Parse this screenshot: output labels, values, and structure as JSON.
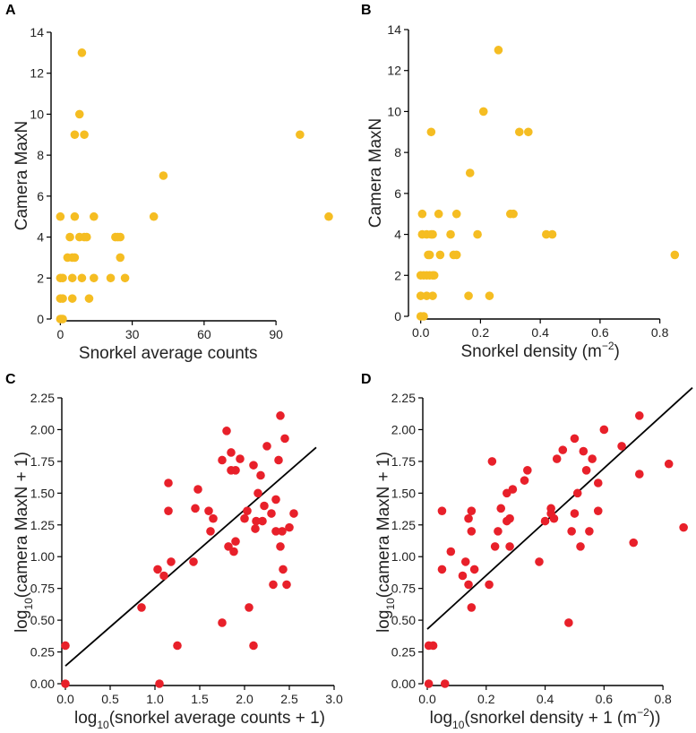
{
  "colors": {
    "orange": "#F5BD22",
    "red": "#E8202A",
    "axis": "#000000",
    "text": "#222222"
  },
  "chart_data": [
    {
      "panel": "A",
      "type": "scatter",
      "xlabel": "Snorkel average counts",
      "ylabel": "Camera MaxN",
      "xlim": [
        -2,
        115
      ],
      "ylim": [
        0,
        14
      ],
      "xticks": [
        0,
        30,
        60,
        90
      ],
      "xtick_labels": [
        "0",
        "30",
        "60",
        "90"
      ],
      "yticks": [
        0,
        2,
        4,
        6,
        8,
        10,
        12,
        14
      ],
      "ytick_labels": [
        "0",
        "2",
        "4",
        "6",
        "8",
        "10",
        "12",
        "14"
      ],
      "points": [
        [
          0,
          0
        ],
        [
          0.5,
          0
        ],
        [
          1,
          0
        ],
        [
          0,
          1
        ],
        [
          1,
          1
        ],
        [
          0,
          2
        ],
        [
          1,
          2
        ],
        [
          0,
          5
        ],
        [
          3,
          3
        ],
        [
          4,
          4
        ],
        [
          5,
          3
        ],
        [
          6,
          3
        ],
        [
          5,
          2
        ],
        [
          6,
          5
        ],
        [
          5,
          1
        ],
        [
          6,
          9
        ],
        [
          8,
          10
        ],
        [
          8,
          4
        ],
        [
          9,
          13
        ],
        [
          9,
          2
        ],
        [
          10,
          4
        ],
        [
          10,
          9
        ],
        [
          11,
          4
        ],
        [
          12,
          1
        ],
        [
          14,
          5
        ],
        [
          14,
          2
        ],
        [
          21,
          2
        ],
        [
          23,
          4
        ],
        [
          24,
          4
        ],
        [
          25,
          4
        ],
        [
          25,
          3
        ],
        [
          27,
          2
        ],
        [
          39,
          5
        ],
        [
          43,
          7
        ],
        [
          100,
          9
        ],
        [
          112,
          5
        ]
      ],
      "color": "#F5BD22"
    },
    {
      "panel": "B",
      "type": "scatter",
      "xlabel": "Snorkel density",
      "xlabel_unit": {
        "open": "(m",
        "sup": "−2",
        "close": ")"
      },
      "ylabel": "Camera MaxN",
      "xlim": [
        -0.02,
        0.9
      ],
      "ylim": [
        0,
        14
      ],
      "xticks": [
        0,
        0.2,
        0.4,
        0.6,
        0.8
      ],
      "xtick_labels": [
        "0.0",
        "0.2",
        "0.4",
        "0.6",
        "0.8"
      ],
      "yticks": [
        0,
        2,
        4,
        6,
        8,
        10,
        12,
        14
      ],
      "ytick_labels": [
        "0",
        "2",
        "4",
        "6",
        "8",
        "10",
        "12",
        "14"
      ],
      "points": [
        [
          0,
          0
        ],
        [
          0.01,
          0
        ],
        [
          0,
          1
        ],
        [
          0.02,
          1
        ],
        [
          0.04,
          1
        ],
        [
          0,
          2
        ],
        [
          0.01,
          2
        ],
        [
          0.02,
          2
        ],
        [
          0.03,
          2
        ],
        [
          0.04,
          2
        ],
        [
          0.045,
          2
        ],
        [
          0.005,
          4
        ],
        [
          0.02,
          4
        ],
        [
          0.035,
          4
        ],
        [
          0.04,
          4
        ],
        [
          0.005,
          5
        ],
        [
          0.025,
          3
        ],
        [
          0.03,
          3
        ],
        [
          0.035,
          9
        ],
        [
          0.06,
          5
        ],
        [
          0.065,
          3
        ],
        [
          0.1,
          4
        ],
        [
          0.11,
          3
        ],
        [
          0.12,
          3
        ],
        [
          0.12,
          5
        ],
        [
          0.16,
          1
        ],
        [
          0.165,
          7
        ],
        [
          0.19,
          4
        ],
        [
          0.21,
          10
        ],
        [
          0.23,
          1
        ],
        [
          0.26,
          13
        ],
        [
          0.3,
          5
        ],
        [
          0.31,
          5
        ],
        [
          0.33,
          9
        ],
        [
          0.36,
          9
        ],
        [
          0.42,
          4
        ],
        [
          0.44,
          4
        ],
        [
          0.85,
          3
        ]
      ],
      "color": "#F5BD22"
    },
    {
      "panel": "C",
      "type": "scatter",
      "xlabel": "log",
      "xlabel_sub": "10",
      "xlabel_rest": "(snorkel average counts + 1)",
      "ylabel": "log",
      "ylabel_sub": "10",
      "ylabel_rest": "(camera MaxN + 1)",
      "xlim": [
        0,
        3.0
      ],
      "ylim": [
        0,
        2.25
      ],
      "xticks": [
        0,
        0.5,
        1.0,
        1.5,
        2.0,
        2.5,
        3.0
      ],
      "xtick_labels": [
        "0.0",
        "0.5",
        "1.0",
        "1.5",
        "2.0",
        "2.5",
        "3.0"
      ],
      "yticks": [
        0,
        0.25,
        0.5,
        0.75,
        1.0,
        1.25,
        1.5,
        1.75,
        2.0,
        2.25
      ],
      "ytick_labels": [
        "0.00",
        "0.25",
        "0.50",
        "0.75",
        "1.00",
        "1.25",
        "1.50",
        "1.75",
        "2.00",
        "2.25"
      ],
      "points": [
        [
          0,
          0.3
        ],
        [
          0,
          0
        ],
        [
          0.85,
          0.6
        ],
        [
          1.03,
          0.9
        ],
        [
          1.05,
          0
        ],
        [
          1.1,
          0.85
        ],
        [
          1.15,
          1.58
        ],
        [
          1.15,
          1.36
        ],
        [
          1.18,
          0.96
        ],
        [
          1.25,
          0.3
        ],
        [
          1.43,
          0.96
        ],
        [
          1.45,
          1.38
        ],
        [
          1.48,
          1.53
        ],
        [
          1.6,
          1.36
        ],
        [
          1.62,
          1.2
        ],
        [
          1.65,
          1.3
        ],
        [
          1.75,
          0.48
        ],
        [
          1.75,
          1.76
        ],
        [
          1.8,
          1.99
        ],
        [
          1.82,
          1.08
        ],
        [
          1.85,
          1.68
        ],
        [
          1.85,
          1.82
        ],
        [
          1.88,
          1.04
        ],
        [
          1.9,
          1.68
        ],
        [
          1.9,
          1.12
        ],
        [
          1.95,
          1.77
        ],
        [
          2.0,
          1.3
        ],
        [
          2.03,
          1.36
        ],
        [
          2.05,
          0.6
        ],
        [
          2.1,
          1.72
        ],
        [
          2.1,
          0.3
        ],
        [
          2.12,
          1.22
        ],
        [
          2.13,
          1.28
        ],
        [
          2.15,
          1.5
        ],
        [
          2.18,
          1.64
        ],
        [
          2.2,
          1.28
        ],
        [
          2.22,
          1.4
        ],
        [
          2.25,
          1.87
        ],
        [
          2.3,
          1.34
        ],
        [
          2.32,
          0.78
        ],
        [
          2.35,
          1.2
        ],
        [
          2.35,
          1.45
        ],
        [
          2.38,
          1.76
        ],
        [
          2.4,
          2.11
        ],
        [
          2.4,
          1.08
        ],
        [
          2.42,
          1.2
        ],
        [
          2.43,
          0.9
        ],
        [
          2.45,
          1.93
        ],
        [
          2.47,
          0.78
        ],
        [
          2.5,
          1.23
        ],
        [
          2.55,
          1.34
        ]
      ],
      "fit_line": {
        "x": [
          0,
          2.8
        ],
        "y": [
          0.14,
          1.86
        ]
      },
      "color": "#E8202A"
    },
    {
      "panel": "D",
      "type": "scatter",
      "xlabel": "log",
      "xlabel_sub": "10",
      "xlabel_rest": "(snorkel density + 1 (m",
      "xlabel_sup": "−2",
      "xlabel_end": "))",
      "ylabel": "log",
      "ylabel_sub": "10",
      "ylabel_rest": "(camera MaxN + 1)",
      "xlim": [
        0,
        0.9
      ],
      "ylim": [
        0,
        2.25
      ],
      "xticks": [
        0,
        0.2,
        0.4,
        0.6,
        0.8
      ],
      "xtick_labels": [
        "0.0",
        "0.2",
        "0.4",
        "0.6",
        "0.8"
      ],
      "yticks": [
        0,
        0.25,
        0.5,
        0.75,
        1.0,
        1.25,
        1.5,
        1.75,
        2.0,
        2.25
      ],
      "ytick_labels": [
        "0.00",
        "0.25",
        "0.50",
        "0.75",
        "1.00",
        "1.25",
        "1.50",
        "1.75",
        "2.00",
        "2.25"
      ],
      "points": [
        [
          0.005,
          0
        ],
        [
          0.005,
          0.3
        ],
        [
          0.02,
          0.3
        ],
        [
          0.05,
          1.36
        ],
        [
          0.05,
          0.9
        ],
        [
          0.06,
          0
        ],
        [
          0.08,
          1.04
        ],
        [
          0.12,
          0.85
        ],
        [
          0.13,
          0.96
        ],
        [
          0.14,
          1.3
        ],
        [
          0.14,
          0.78
        ],
        [
          0.15,
          1.36
        ],
        [
          0.15,
          1.2
        ],
        [
          0.15,
          0.6
        ],
        [
          0.16,
          0.9
        ],
        [
          0.21,
          0.78
        ],
        [
          0.22,
          1.75
        ],
        [
          0.23,
          1.08
        ],
        [
          0.24,
          1.2
        ],
        [
          0.25,
          1.38
        ],
        [
          0.27,
          1.5
        ],
        [
          0.27,
          1.28
        ],
        [
          0.28,
          1.3
        ],
        [
          0.28,
          1.08
        ],
        [
          0.29,
          1.53
        ],
        [
          0.33,
          1.6
        ],
        [
          0.34,
          1.68
        ],
        [
          0.38,
          0.96
        ],
        [
          0.4,
          1.28
        ],
        [
          0.42,
          1.38
        ],
        [
          0.42,
          1.34
        ],
        [
          0.43,
          1.3
        ],
        [
          0.44,
          1.77
        ],
        [
          0.46,
          1.84
        ],
        [
          0.48,
          0.48
        ],
        [
          0.49,
          1.2
        ],
        [
          0.5,
          1.93
        ],
        [
          0.5,
          1.34
        ],
        [
          0.51,
          1.5
        ],
        [
          0.52,
          1.08
        ],
        [
          0.53,
          1.83
        ],
        [
          0.54,
          1.68
        ],
        [
          0.55,
          1.2
        ],
        [
          0.56,
          1.77
        ],
        [
          0.58,
          1.36
        ],
        [
          0.58,
          1.58
        ],
        [
          0.6,
          2.0
        ],
        [
          0.66,
          1.87
        ],
        [
          0.7,
          1.11
        ],
        [
          0.72,
          1.65
        ],
        [
          0.72,
          2.11
        ],
        [
          0.82,
          1.73
        ],
        [
          0.87,
          1.23
        ]
      ],
      "fit_line": {
        "x": [
          0,
          0.9
        ],
        "y": [
          0.43,
          2.33
        ]
      },
      "color": "#E8202A"
    }
  ]
}
